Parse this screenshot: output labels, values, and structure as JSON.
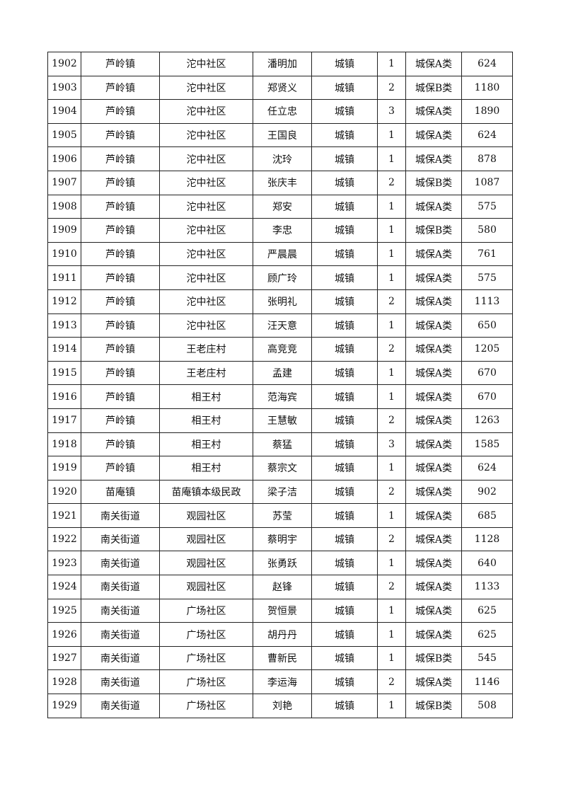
{
  "table": {
    "rows": [
      [
        "1902",
        "芦岭镇",
        "沱中社区",
        "潘明加",
        "城镇",
        "1",
        "城保A类",
        "624"
      ],
      [
        "1903",
        "芦岭镇",
        "沱中社区",
        "郑贤义",
        "城镇",
        "2",
        "城保B类",
        "1180"
      ],
      [
        "1904",
        "芦岭镇",
        "沱中社区",
        "任立忠",
        "城镇",
        "3",
        "城保A类",
        "1890"
      ],
      [
        "1905",
        "芦岭镇",
        "沱中社区",
        "王国良",
        "城镇",
        "1",
        "城保A类",
        "624"
      ],
      [
        "1906",
        "芦岭镇",
        "沱中社区",
        "沈玲",
        "城镇",
        "1",
        "城保A类",
        "878"
      ],
      [
        "1907",
        "芦岭镇",
        "沱中社区",
        "张庆丰",
        "城镇",
        "2",
        "城保B类",
        "1087"
      ],
      [
        "1908",
        "芦岭镇",
        "沱中社区",
        "郑安",
        "城镇",
        "1",
        "城保A类",
        "575"
      ],
      [
        "1909",
        "芦岭镇",
        "沱中社区",
        "李忠",
        "城镇",
        "1",
        "城保B类",
        "580"
      ],
      [
        "1910",
        "芦岭镇",
        "沱中社区",
        "严晨晨",
        "城镇",
        "1",
        "城保A类",
        "761"
      ],
      [
        "1911",
        "芦岭镇",
        "沱中社区",
        "顾广玲",
        "城镇",
        "1",
        "城保A类",
        "575"
      ],
      [
        "1912",
        "芦岭镇",
        "沱中社区",
        "张明礼",
        "城镇",
        "2",
        "城保A类",
        "1113"
      ],
      [
        "1913",
        "芦岭镇",
        "沱中社区",
        "汪天意",
        "城镇",
        "1",
        "城保A类",
        "650"
      ],
      [
        "1914",
        "芦岭镇",
        "王老庄村",
        "高竞竞",
        "城镇",
        "2",
        "城保A类",
        "1205"
      ],
      [
        "1915",
        "芦岭镇",
        "王老庄村",
        "孟建",
        "城镇",
        "1",
        "城保A类",
        "670"
      ],
      [
        "1916",
        "芦岭镇",
        "相王村",
        "范海宾",
        "城镇",
        "1",
        "城保A类",
        "670"
      ],
      [
        "1917",
        "芦岭镇",
        "相王村",
        "王慧敏",
        "城镇",
        "2",
        "城保A类",
        "1263"
      ],
      [
        "1918",
        "芦岭镇",
        "相王村",
        "蔡猛",
        "城镇",
        "3",
        "城保A类",
        "1585"
      ],
      [
        "1919",
        "芦岭镇",
        "相王村",
        "蔡宗文",
        "城镇",
        "1",
        "城保A类",
        "624"
      ],
      [
        "1920",
        "苗庵镇",
        "苗庵镇本级民政",
        "梁子洁",
        "城镇",
        "2",
        "城保A类",
        "902"
      ],
      [
        "1921",
        "南关街道",
        "观园社区",
        "苏莹",
        "城镇",
        "1",
        "城保A类",
        "685"
      ],
      [
        "1922",
        "南关街道",
        "观园社区",
        "蔡明宇",
        "城镇",
        "2",
        "城保A类",
        "1128"
      ],
      [
        "1923",
        "南关街道",
        "观园社区",
        "张勇跃",
        "城镇",
        "1",
        "城保A类",
        "640"
      ],
      [
        "1924",
        "南关街道",
        "观园社区",
        "赵锋",
        "城镇",
        "2",
        "城保A类",
        "1133"
      ],
      [
        "1925",
        "南关街道",
        "广场社区",
        "贺恒景",
        "城镇",
        "1",
        "城保A类",
        "625"
      ],
      [
        "1926",
        "南关街道",
        "广场社区",
        "胡丹丹",
        "城镇",
        "1",
        "城保A类",
        "625"
      ],
      [
        "1927",
        "南关街道",
        "广场社区",
        "曹新民",
        "城镇",
        "1",
        "城保B类",
        "545"
      ],
      [
        "1928",
        "南关街道",
        "广场社区",
        "李运海",
        "城镇",
        "2",
        "城保A类",
        "1146"
      ],
      [
        "1929",
        "南关街道",
        "广场社区",
        "刘艳",
        "城镇",
        "1",
        "城保B类",
        "508"
      ]
    ]
  }
}
